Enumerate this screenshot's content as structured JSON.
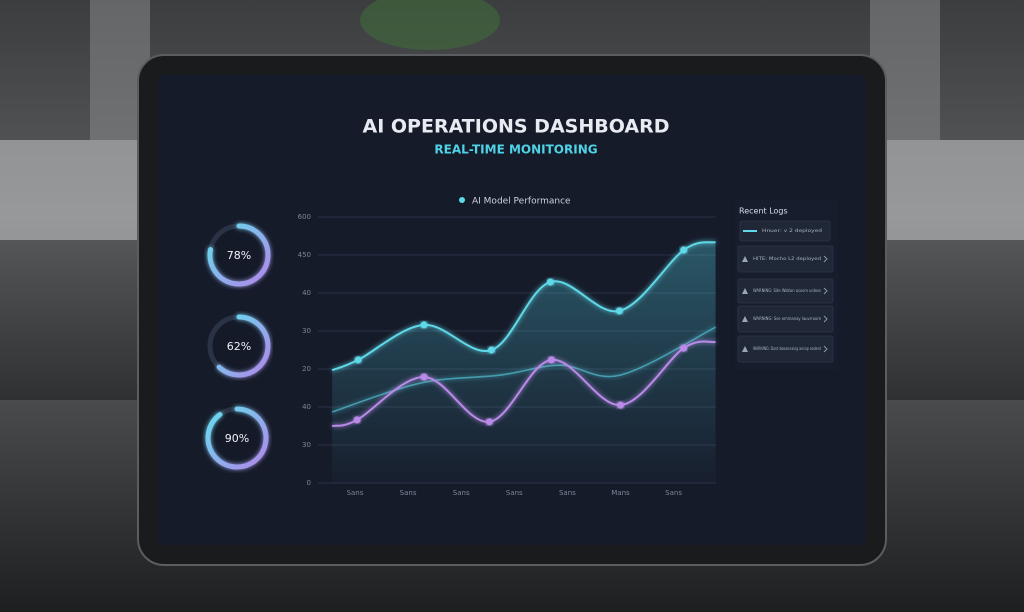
{
  "dashboard": {
    "title": "AI OPERATIONS DASHBOARD",
    "subtitle": "REAL-TIME MONITORING",
    "gauges": [
      {
        "value": 78,
        "value_label": "78%"
      },
      {
        "value": 62,
        "value_label": "62%"
      },
      {
        "value": 90,
        "value_label": "90%"
      }
    ],
    "chart": {
      "legend": "AI Model Performance",
      "y_labels": [
        "0",
        "30",
        "40",
        "20",
        "30",
        "40",
        "450",
        "600"
      ],
      "x_labels": [
        "Sans",
        "Sans",
        "Sans",
        "Sans",
        "Sans",
        "Mans",
        "Sans"
      ],
      "series": [
        {
          "color": "#5fd8e8",
          "dots": true,
          "area": true,
          "x": [
            -0.43,
            0.06,
            1.3,
            2.57,
            3.68,
            4.98,
            6.19,
            6.79
          ],
          "values": [
            2.97,
            3.24,
            4.16,
            3.5,
            5.29,
            4.53,
            6.13,
            6.34
          ]
        },
        {
          "color": "#4fb6c8",
          "dots": false,
          "area": false,
          "x": [
            -0.43,
            1.23,
            2.74,
            3.87,
            5.0,
            6.79
          ],
          "values": [
            1.87,
            2.63,
            2.84,
            3.1,
            2.84,
            4.1
          ]
        },
        {
          "color": "#b98ae8",
          "dots": true,
          "area": false,
          "x": [
            -0.43,
            0.04,
            1.3,
            2.53,
            3.7,
            5.0,
            6.19,
            6.79
          ],
          "values": [
            1.5,
            1.66,
            2.79,
            1.61,
            3.24,
            2.05,
            3.55,
            3.71
          ]
        }
      ]
    },
    "logs": {
      "title": "Recent Logs",
      "items": [
        "Hnuer: v 2 deployed",
        "HITE: Mocho L2 deployed",
        "WARNING: Site Wation acosm unless",
        "WARNING: Sse emmanay lauvrroom",
        "WARNING: Dont doeannaing ansnp eodent"
      ]
    }
  }
}
